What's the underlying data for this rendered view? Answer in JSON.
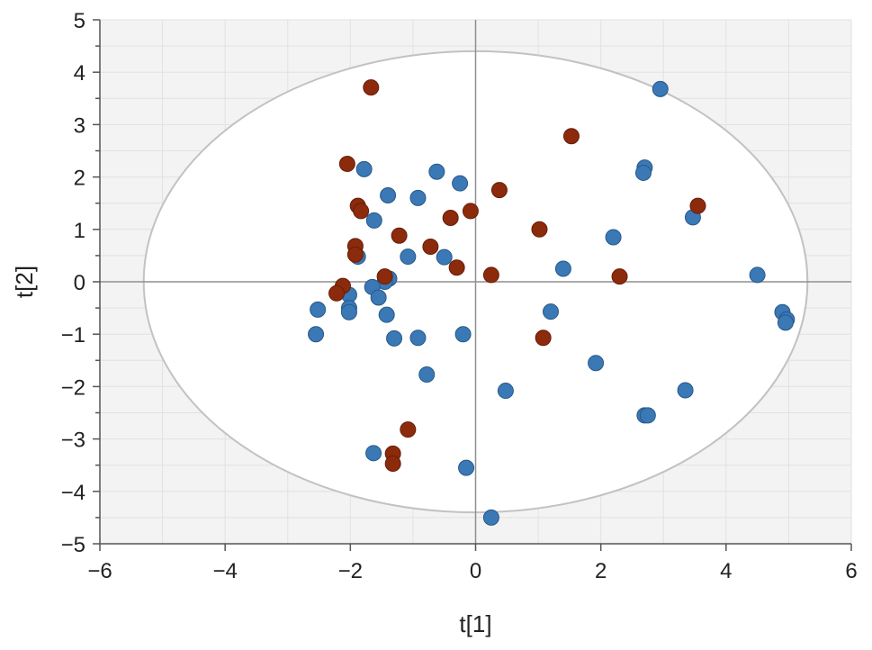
{
  "chart_data": {
    "type": "scatter",
    "xlabel": "t[1]",
    "ylabel": "t[2]",
    "xlim": [
      -6,
      6
    ],
    "ylim": [
      -5,
      5
    ],
    "x_ticks": [
      -6,
      -4,
      -2,
      0,
      2,
      4,
      6
    ],
    "y_ticks": [
      -5,
      -4,
      -3,
      -2,
      -1,
      0,
      1,
      2,
      3,
      4,
      5
    ],
    "grid": true,
    "hotelling_ellipse": {
      "cx": 0,
      "cy": 0,
      "rx": 5.3,
      "ry": 4.4
    },
    "colors": {
      "background": "#f3f3f3",
      "ellipse_fill": "#ffffff",
      "ellipse_stroke": "#c2c2c2",
      "grid": "#e2e2e2",
      "zero_line": "#8f8f8f",
      "axis": "#555555"
    },
    "series": [
      {
        "color": "#3a78b6",
        "stroke": "#2a5986",
        "points": [
          [
            2.95,
            3.68
          ],
          [
            -1.78,
            2.15
          ],
          [
            -0.62,
            2.1
          ],
          [
            -0.25,
            1.88
          ],
          [
            2.7,
            2.18
          ],
          [
            2.68,
            2.08
          ],
          [
            -1.4,
            1.65
          ],
          [
            -0.92,
            1.6
          ],
          [
            -1.62,
            1.17
          ],
          [
            3.47,
            1.23
          ],
          [
            2.2,
            0.85
          ],
          [
            -1.88,
            0.48
          ],
          [
            -1.08,
            0.48
          ],
          [
            -0.5,
            0.47
          ],
          [
            1.4,
            0.25
          ],
          [
            4.5,
            0.13
          ],
          [
            -1.38,
            0.06
          ],
          [
            -1.45,
            0.0
          ],
          [
            -1.65,
            -0.1
          ],
          [
            -2.02,
            -0.25
          ],
          [
            -1.55,
            -0.3
          ],
          [
            -2.52,
            -0.53
          ],
          [
            -2.02,
            -0.5
          ],
          [
            -2.02,
            -0.58
          ],
          [
            1.2,
            -0.57
          ],
          [
            4.9,
            -0.58
          ],
          [
            4.97,
            -0.72
          ],
          [
            4.95,
            -0.78
          ],
          [
            -1.42,
            -0.63
          ],
          [
            -2.55,
            -1.0
          ],
          [
            -0.2,
            -1.0
          ],
          [
            -1.3,
            -1.08
          ],
          [
            -0.92,
            -1.07
          ],
          [
            1.92,
            -1.55
          ],
          [
            -0.78,
            -1.77
          ],
          [
            0.48,
            -2.08
          ],
          [
            3.35,
            -2.07
          ],
          [
            2.7,
            -2.55
          ],
          [
            2.75,
            -2.55
          ],
          [
            -1.63,
            -3.27
          ],
          [
            -0.15,
            -3.55
          ],
          [
            0.25,
            -4.5
          ]
        ]
      },
      {
        "color": "#8c2a0c",
        "stroke": "#661e08",
        "points": [
          [
            -1.67,
            3.71
          ],
          [
            1.53,
            2.78
          ],
          [
            -2.05,
            2.25
          ],
          [
            0.38,
            1.75
          ],
          [
            -1.88,
            1.45
          ],
          [
            -1.83,
            1.35
          ],
          [
            -0.08,
            1.35
          ],
          [
            -0.4,
            1.22
          ],
          [
            3.55,
            1.45
          ],
          [
            1.02,
            1.0
          ],
          [
            -1.22,
            0.88
          ],
          [
            -1.92,
            0.68
          ],
          [
            -0.72,
            0.67
          ],
          [
            -1.92,
            0.52
          ],
          [
            -0.3,
            0.27
          ],
          [
            0.25,
            0.13
          ],
          [
            2.3,
            0.1
          ],
          [
            -1.45,
            0.1
          ],
          [
            -2.12,
            -0.08
          ],
          [
            -2.22,
            -0.22
          ],
          [
            1.08,
            -1.07
          ],
          [
            -1.08,
            -2.82
          ],
          [
            -1.32,
            -3.28
          ],
          [
            -1.32,
            -3.47
          ]
        ]
      }
    ]
  }
}
